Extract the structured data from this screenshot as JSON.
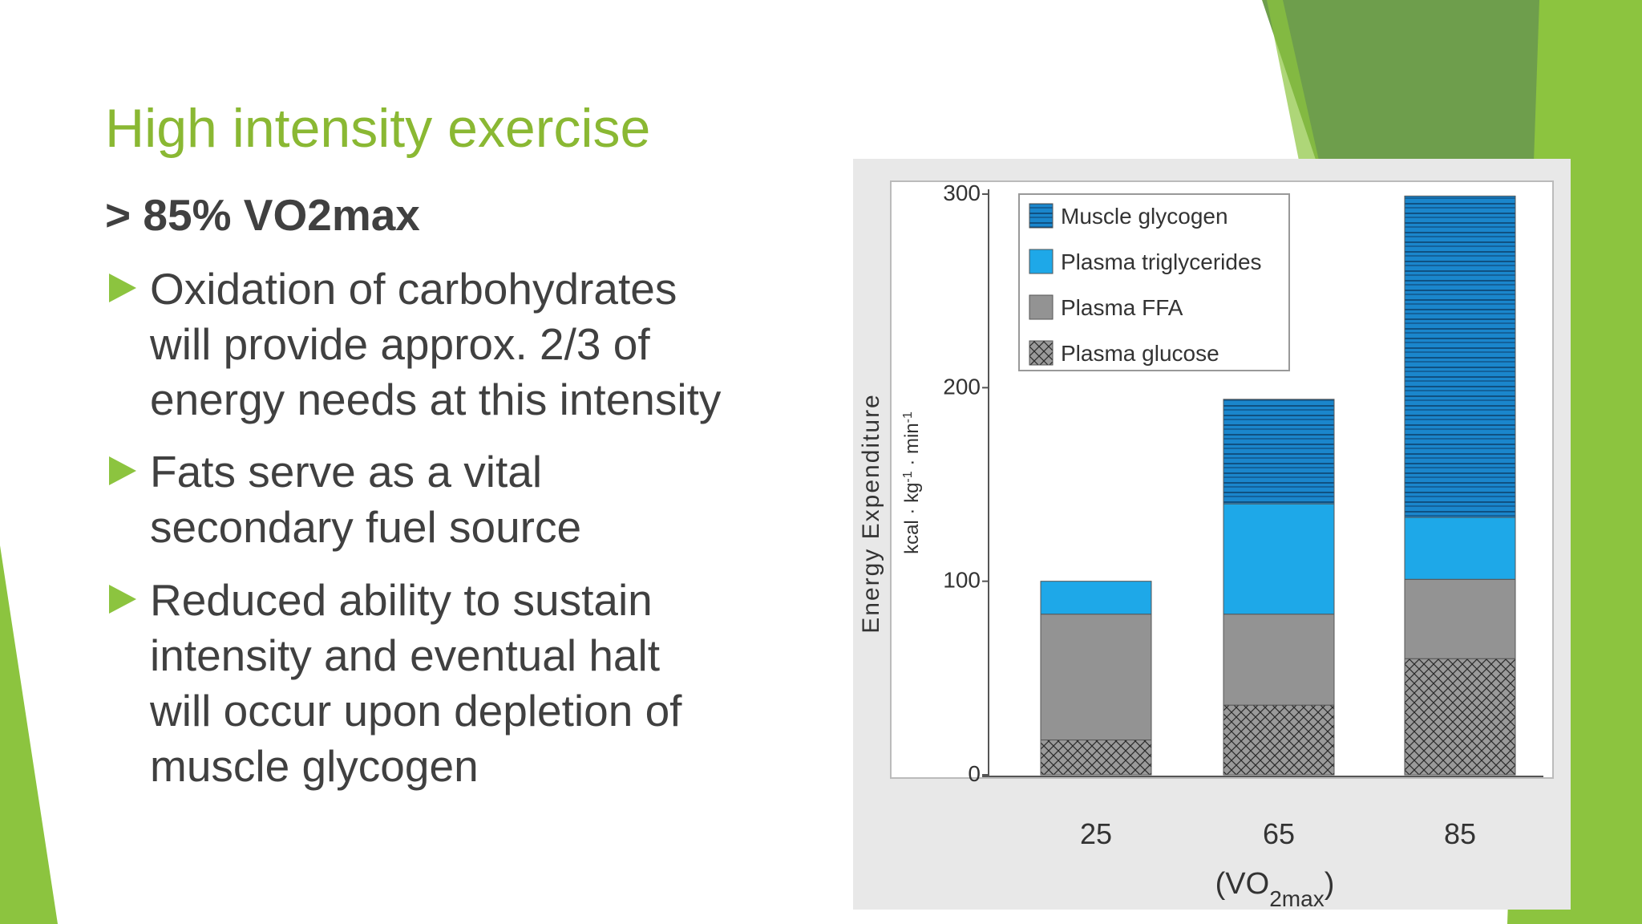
{
  "slide": {
    "title": "High intensity exercise",
    "lead": "> 85% VO2max",
    "bullets": [
      [
        "Oxidation of carbohydrates",
        "will provide approx. 2/3 of",
        "energy needs at this intensity"
      ],
      [
        "Fats serve as a vital",
        "secondary fuel source"
      ],
      [
        "Reduced ability to sustain",
        "intensity and eventual halt",
        "will occur upon depletion of",
        "muscle glycogen"
      ]
    ]
  },
  "chart_data": {
    "type": "stacked-bar",
    "y_label": "Energy Expenditure",
    "y_unit": [
      "kcal · kg",
      "-1",
      " · min",
      "-1"
    ],
    "x_label": [
      "(VO",
      "2max",
      ")"
    ],
    "categories": [
      "25",
      "65",
      "85"
    ],
    "series": [
      {
        "name": "Muscle glycogen",
        "color": "#1a86cc",
        "pattern": "horizontal-lines",
        "values": [
          0,
          54,
          166
        ]
      },
      {
        "name": "Plasma triglycerides",
        "color": "#1ea8e8",
        "pattern": "none",
        "values": [
          17,
          57,
          32
        ]
      },
      {
        "name": "Plasma FFA",
        "color": "#939393",
        "pattern": "none",
        "values": [
          65,
          47,
          41
        ]
      },
      {
        "name": "Plasma glucose",
        "color": "#9a9a9a",
        "pattern": "cross-hatch",
        "values": [
          18,
          36,
          60
        ]
      }
    ],
    "ylim": [
      0,
      300
    ],
    "yticks": [
      0,
      100,
      200,
      300
    ]
  }
}
